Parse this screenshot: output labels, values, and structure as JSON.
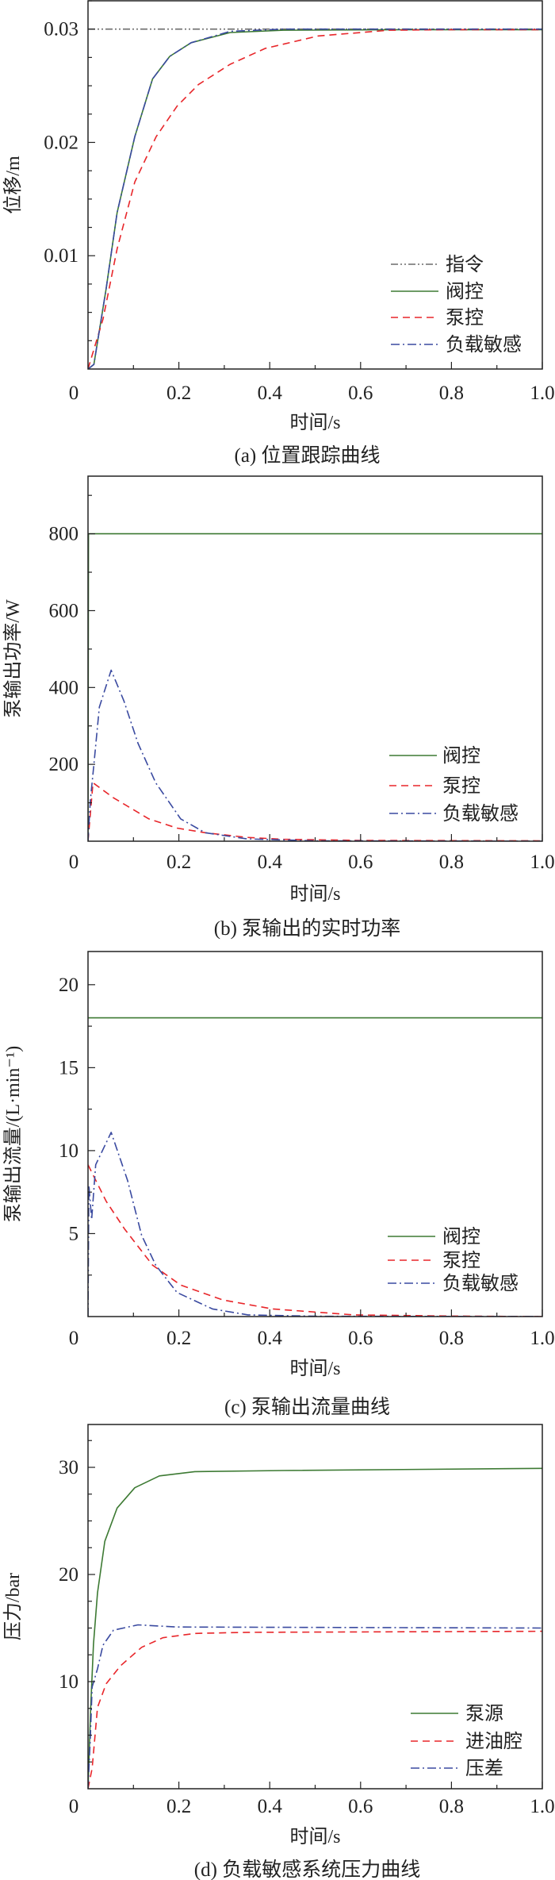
{
  "chart_data": [
    {
      "type": "line",
      "title": "(a) 位置跟踪曲线",
      "xlabel": "时间/s",
      "ylabel": "位移/m",
      "xlim": [
        0,
        1.0
      ],
      "ylim": [
        0,
        0.0325
      ],
      "xticks": [
        0,
        0.2,
        0.4,
        0.6,
        0.8,
        1.0
      ],
      "xtick_labels": [
        "0",
        "0.2",
        "0.4",
        "0.6",
        "0.8",
        "1.0"
      ],
      "yticks": [
        0.01,
        0.02,
        0.03
      ],
      "ytick_labels": [
        "0.01",
        "0.02",
        "0.03"
      ],
      "y_minor_step": 0.0025,
      "grid": false,
      "legend": "bottom-right",
      "series": [
        {
          "name": "指令",
          "color": "#6b6b6b",
          "style": "dash-dot-dot",
          "x": [
            0,
            1.0
          ],
          "y": [
            0.03,
            0.03
          ]
        },
        {
          "name": "阀控",
          "color": "#3d7a33",
          "style": "solid",
          "x": [
            0,
            0.013,
            0.04,
            0.064,
            0.103,
            0.142,
            0.18,
            0.227,
            0.313,
            0.43,
            0.7,
            1.0
          ],
          "y": [
            0,
            0.0004,
            0.0071,
            0.0138,
            0.0205,
            0.0256,
            0.0276,
            0.0288,
            0.0297,
            0.0299,
            0.02995,
            0.02995
          ]
        },
        {
          "name": "泵控",
          "color": "#e8262a",
          "style": "dashed",
          "x": [
            0,
            0.033,
            0.064,
            0.103,
            0.15,
            0.196,
            0.243,
            0.313,
            0.39,
            0.507,
            0.663,
            0.8,
            1.0
          ],
          "y": [
            0,
            0.0044,
            0.0106,
            0.0165,
            0.0205,
            0.0232,
            0.0251,
            0.0269,
            0.0283,
            0.0294,
            0.0299,
            0.02995,
            0.02995
          ]
        },
        {
          "name": "负载敏感",
          "color": "#3a4aa0",
          "style": "dash-dot",
          "x": [
            0,
            0.013,
            0.04,
            0.064,
            0.103,
            0.142,
            0.18,
            0.227,
            0.313,
            0.43,
            1.0
          ],
          "y": [
            0,
            0.0004,
            0.0071,
            0.0138,
            0.0205,
            0.0256,
            0.0276,
            0.0288,
            0.0298,
            0.03,
            0.03
          ]
        }
      ]
    },
    {
      "type": "line",
      "title": "(b) 泵输出的实时功率",
      "xlabel": "时间/s",
      "ylabel": "泵输出功率/W",
      "xlim": [
        0,
        1.0
      ],
      "ylim": [
        0,
        950
      ],
      "xticks": [
        0,
        0.2,
        0.4,
        0.6,
        0.8,
        1.0
      ],
      "xtick_labels": [
        "0",
        "0.2",
        "0.4",
        "0.6",
        "0.8",
        "1.0"
      ],
      "yticks": [
        200,
        400,
        600,
        800
      ],
      "ytick_labels": [
        "200",
        "400",
        "600",
        "800"
      ],
      "y_minor_step": 100,
      "grid": false,
      "legend": "bottom-right",
      "series": [
        {
          "name": "阀控",
          "color": "#3d7a33",
          "style": "solid",
          "x": [
            0,
            0.001,
            1.0
          ],
          "y": [
            0,
            800,
            800
          ]
        },
        {
          "name": "泵控",
          "color": "#e8262a",
          "style": "dashed",
          "x": [
            0,
            0.011,
            0.056,
            0.134,
            0.196,
            0.258,
            0.35,
            0.43,
            0.6,
            1.0
          ],
          "y": [
            0,
            152,
            113,
            58,
            34,
            22,
            10,
            5,
            2,
            1
          ]
        },
        {
          "name": "负载敏感",
          "color": "#3a4aa0",
          "style": "dash-dot",
          "x": [
            0,
            0.005,
            0.013,
            0.025,
            0.051,
            0.079,
            0.11,
            0.149,
            0.204,
            0.258,
            0.35,
            0.5,
            1.0
          ],
          "y": [
            0,
            105,
            199,
            349,
            445,
            365,
            255,
            152,
            58,
            22,
            6,
            1,
            0
          ]
        }
      ]
    },
    {
      "type": "line",
      "title": "(c) 泵输出流量曲线",
      "xlabel": "时间/s",
      "ylabel": "泵输出流量/(L·min⁻¹)",
      "xlim": [
        0,
        1.0
      ],
      "ylim": [
        0,
        22
      ],
      "xticks": [
        0,
        0.2,
        0.4,
        0.6,
        0.8,
        1.0
      ],
      "xtick_labels": [
        "0",
        "0.2",
        "0.4",
        "0.6",
        "0.8",
        "1.0"
      ],
      "yticks": [
        5,
        10,
        15,
        20
      ],
      "ytick_labels": [
        "5",
        "10",
        "15",
        "20"
      ],
      "y_minor_step": 2.5,
      "grid": false,
      "legend": "bottom-right",
      "series": [
        {
          "name": "阀控",
          "color": "#3d7a33",
          "style": "solid",
          "x": [
            0,
            1.0
          ],
          "y": [
            18,
            18
          ]
        },
        {
          "name": "泵控",
          "color": "#e8262a",
          "style": "dashed",
          "x": [
            0,
            0.04,
            0.08,
            0.142,
            0.204,
            0.297,
            0.406,
            0.585,
            0.8,
            1.0
          ],
          "y": [
            9.15,
            6.95,
            5.3,
            3.1,
            1.9,
            1.0,
            0.46,
            0.1,
            0.03,
            0
          ]
        },
        {
          "name": "负载敏感",
          "color": "#3a4aa0",
          "style": "dash-dot",
          "x": [
            0,
            0.002,
            0.008,
            0.017,
            0.051,
            0.087,
            0.118,
            0.149,
            0.196,
            0.274,
            0.352,
            0.5,
            1.0
          ],
          "y": [
            0,
            7.9,
            5.85,
            9.15,
            11.1,
            8.2,
            4.9,
            3.1,
            1.45,
            0.46,
            0.1,
            0.02,
            0
          ]
        }
      ]
    },
    {
      "type": "line",
      "title": "(d) 负载敏感系统压力曲线",
      "xlabel": "时间/s",
      "ylabel": "压力/bar",
      "xlim": [
        0,
        1.0
      ],
      "ylim": [
        0,
        34
      ],
      "xticks": [
        0,
        0.2,
        0.4,
        0.6,
        0.8,
        1.0
      ],
      "xtick_labels": [
        "0",
        "0.2",
        "0.4",
        "0.6",
        "0.8",
        "1.0"
      ],
      "yticks": [
        10,
        20,
        30
      ],
      "ytick_labels": [
        "10",
        "20",
        "30"
      ],
      "y_minor_step": 2.5,
      "grid": false,
      "legend": "bottom-right",
      "series": [
        {
          "name": "泵源",
          "color": "#3d7a33",
          "style": "solid",
          "x": [
            0,
            0.006,
            0.012,
            0.021,
            0.037,
            0.064,
            0.103,
            0.157,
            0.235,
            0.43,
            1.0
          ],
          "y": [
            0,
            7.6,
            13.5,
            18.3,
            23.1,
            26.2,
            28.1,
            29.2,
            29.6,
            29.7,
            29.9
          ]
        },
        {
          "name": "进油腔",
          "color": "#e8262a",
          "style": "dashed",
          "x": [
            0,
            0.009,
            0.021,
            0.04,
            0.072,
            0.118,
            0.165,
            0.235,
            0.352,
            1.0
          ],
          "y": [
            0,
            1.9,
            7.6,
            9.8,
            11.5,
            13.2,
            14.1,
            14.5,
            14.6,
            14.7
          ]
        },
        {
          "name": "压差",
          "color": "#3a4aa0",
          "style": "dash-dot",
          "x": [
            0,
            0.005,
            0.009,
            0.021,
            0.033,
            0.056,
            0.11,
            0.196,
            1.0
          ],
          "y": [
            0,
            4.7,
            9.5,
            11.2,
            13.4,
            14.8,
            15.3,
            15.1,
            15.0
          ]
        }
      ]
    }
  ]
}
